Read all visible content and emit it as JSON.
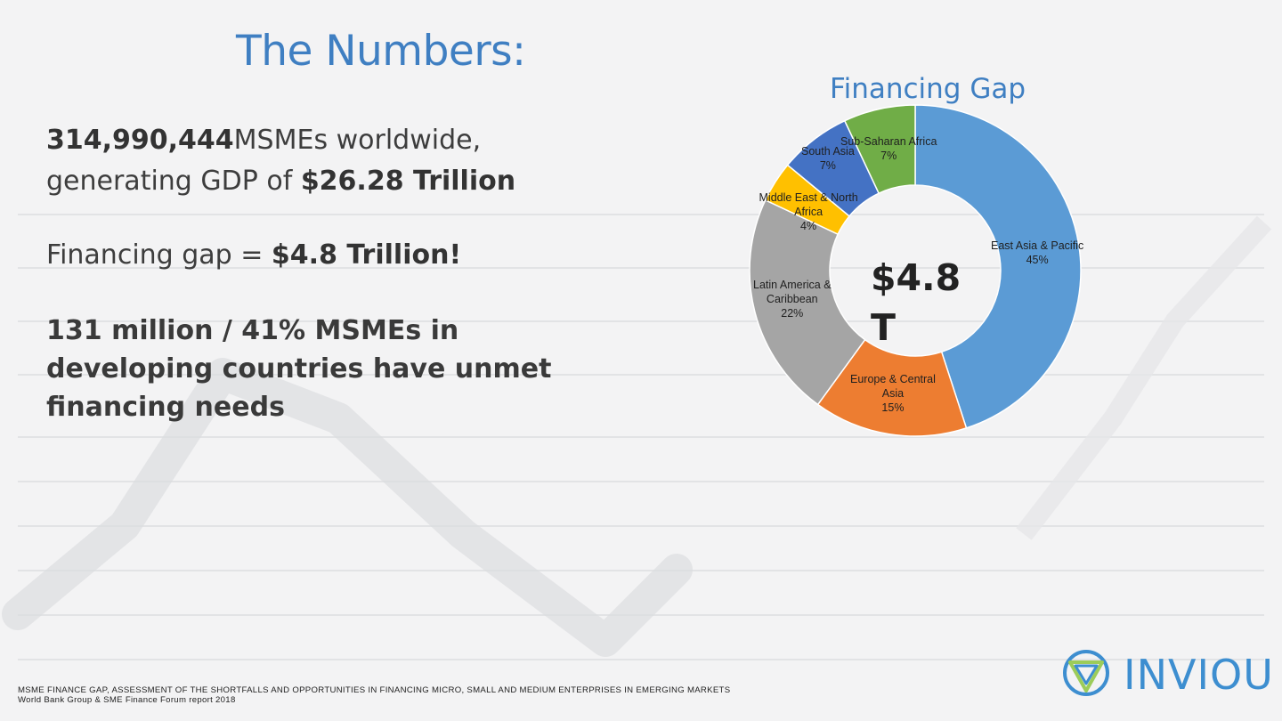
{
  "slide": {
    "title": "The Numbers:"
  },
  "stats": {
    "line1_bold": "314,990,444",
    "line1_rest": "MSMEs worldwide,",
    "line2_pre": "generating GDP of ",
    "line2_bold": "$26.28 Trillion",
    "gap_pre": "Financing gap = ",
    "gap_bold": "$4.8 Trillion!",
    "unmet_line1": "131 million / 41% MSMEs in",
    "unmet_line2": "developing countries have unmet",
    "unmet_line3": "financing needs"
  },
  "chart_data": {
    "type": "pie",
    "title": "Financing Gap",
    "center_label_line1": "$4.8",
    "center_label_line2": "T",
    "categories": [
      "East Asia & Pacific",
      "Europe & Central Asia",
      "Latin America & Caribbean",
      "Middle East & North Africa",
      "South Asia",
      "Sub-Saharan Africa"
    ],
    "values": [
      45,
      15,
      22,
      4,
      7,
      7
    ],
    "labels": [
      {
        "name_lines": [
          "East Asia & Pacific"
        ],
        "pct": "45%"
      },
      {
        "name_lines": [
          "Europe & Central",
          "Asia"
        ],
        "pct": "15%"
      },
      {
        "name_lines": [
          "Latin America &",
          "Caribbean"
        ],
        "pct": "22%"
      },
      {
        "name_lines": [
          "Middle East & North",
          "Africa"
        ],
        "pct": "4%"
      },
      {
        "name_lines": [
          "South Asia"
        ],
        "pct": "7%"
      },
      {
        "name_lines": [
          "Sub-Saharan Africa"
        ],
        "pct": "7%"
      }
    ],
    "colors": [
      "#5b9bd5",
      "#ed7d31",
      "#a5a5a5",
      "#ffc000",
      "#4472c4",
      "#70ad47"
    ],
    "legend": "none"
  },
  "source": {
    "line1": "MSME FINANCE GAP, ASSESSMENT OF THE SHORTFALLS AND OPPORTUNITIES IN FINANCING MICRO, SMALL AND MEDIUM ENTERPRISES IN EMERGING MARKETS",
    "line2": "World Bank Group & SME Finance Forum report 2018"
  },
  "logo": {
    "text": "INVIOU",
    "color": "#3d8ed0"
  }
}
